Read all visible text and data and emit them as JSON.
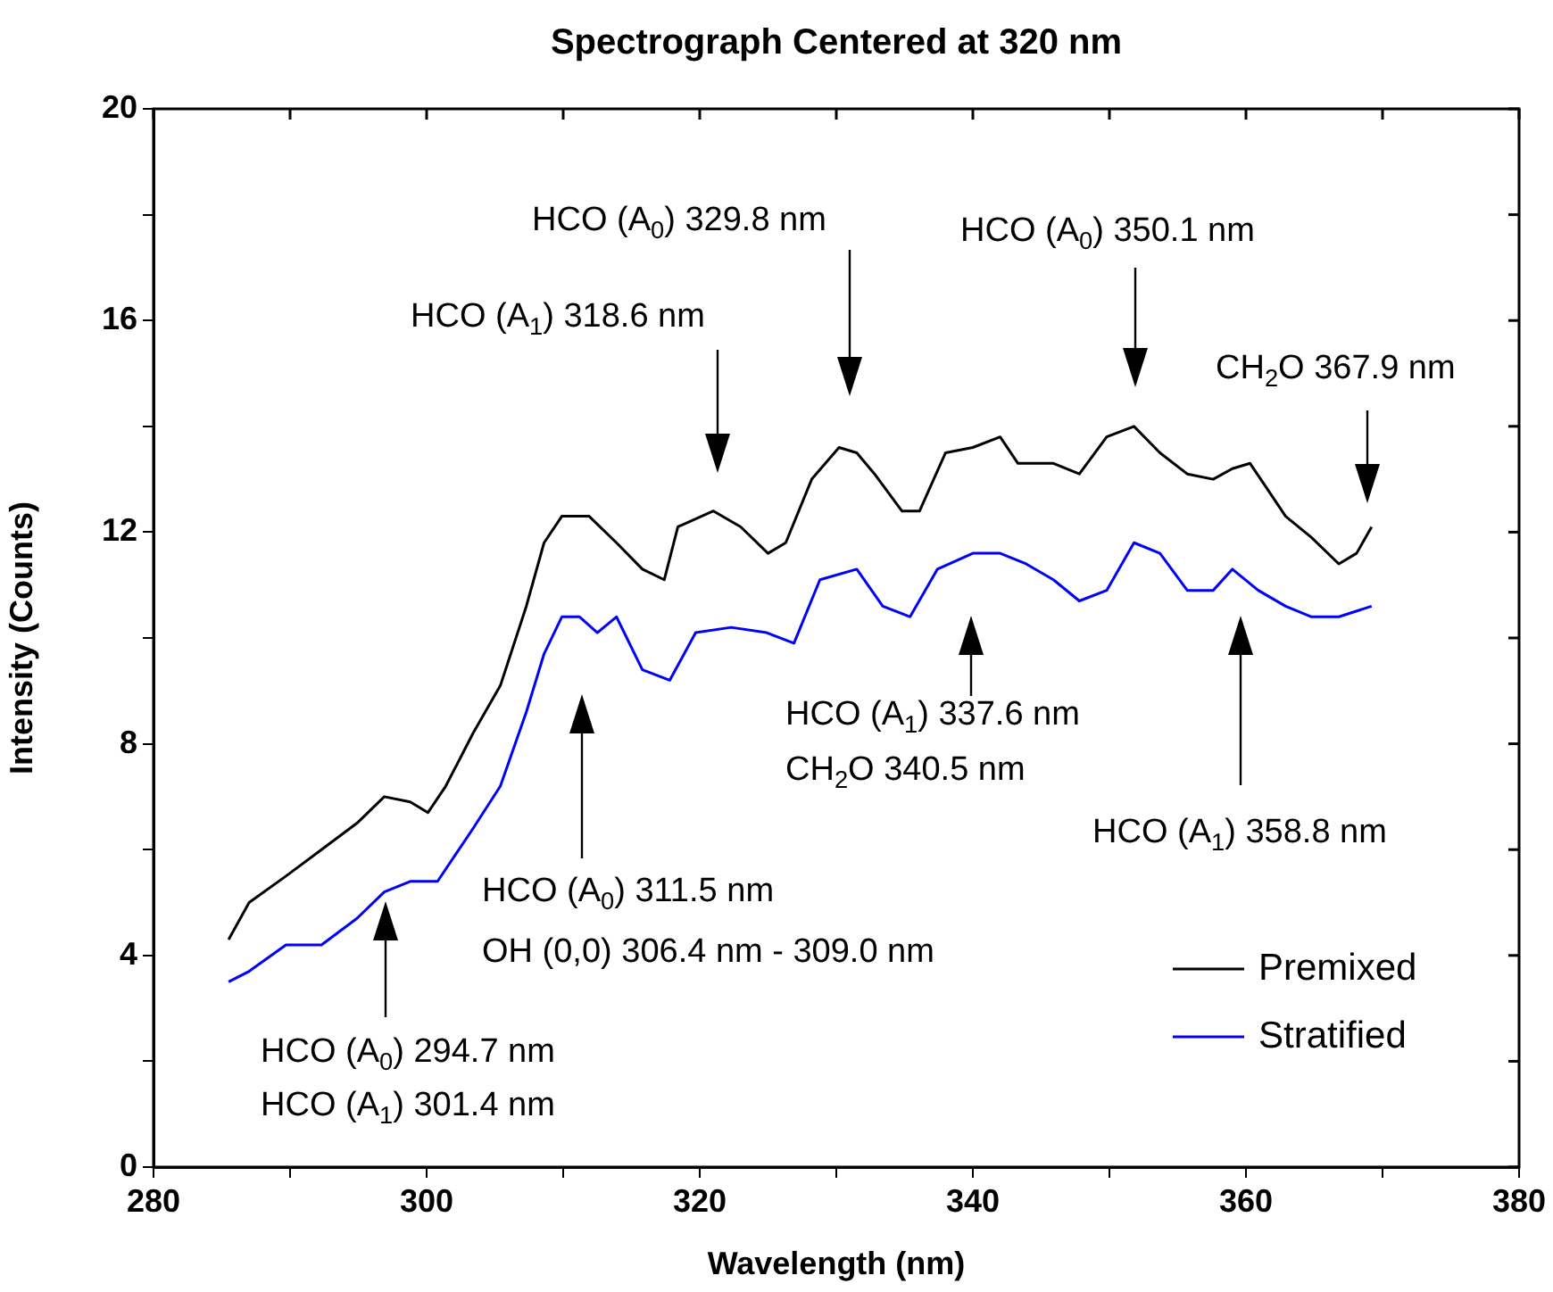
{
  "chart_data": {
    "type": "line",
    "title": "Spectrograph Centered at 320 nm",
    "xlabel": "Wavelength (nm)",
    "ylabel": "Intensity (Counts)",
    "xlim": [
      280,
      380
    ],
    "xticks": [
      280,
      {
        "value": 290,
        "label": null
      },
      300,
      {
        "value": 310,
        "label": null
      },
      320,
      {
        "value": 330,
        "label": null
      },
      340,
      {
        "value": 350,
        "label": null
      },
      360,
      {
        "value": 370,
        "label": null
      },
      380
    ],
    "ylim": [
      0,
      20
    ],
    "yticks": [
      0,
      {
        "value": 2,
        "label": null
      },
      4,
      {
        "value": 6,
        "label": null
      },
      8,
      {
        "value": 10,
        "label": null
      },
      12,
      {
        "value": 14,
        "label": null
      },
      16,
      {
        "value": 18,
        "label": null
      },
      20
    ],
    "legend": "bottom right",
    "grid": false,
    "marker": "none",
    "line_style": "solid",
    "series": [
      {
        "name": "Premixed",
        "color": "#000000",
        "x": [
          285.5,
          287,
          289.7,
          292.3,
          294.9,
          296.9,
          298.8,
          300.1,
          301.4,
          303.4,
          305.4,
          307.3,
          308.6,
          309.9,
          311.9,
          313.9,
          315.8,
          317.4,
          318.4,
          321,
          323,
          325,
          326.3,
          328.2,
          330.2,
          331.5,
          332.8,
          334.8,
          336.1,
          338,
          340,
          342,
          343.3,
          345.9,
          347.8,
          349.8,
          351.8,
          353.7,
          355.7,
          357.6,
          359,
          360.3,
          361.6,
          362.9,
          364.8,
          366.8,
          368.1,
          369.2
        ],
        "values": [
          4.3,
          5,
          5.5,
          6,
          6.5,
          7,
          6.9,
          6.7,
          7.2,
          8.2,
          9.1,
          10.6,
          11.8,
          12.3,
          12.3,
          11.8,
          11.3,
          11.1,
          12.1,
          12.4,
          12.1,
          11.6,
          11.8,
          13,
          13.6,
          13.5,
          13.1,
          12.4,
          12.4,
          13.5,
          13.6,
          13.8,
          13.3,
          13.3,
          13.1,
          13.8,
          14,
          13.5,
          13.1,
          13,
          13.2,
          13.3,
          12.8,
          12.3,
          11.9,
          11.4,
          11.6,
          12.1
        ]
      },
      {
        "name": "Stratified",
        "color": "#0000ff",
        "x": [
          285.5,
          287,
          289.7,
          292.3,
          294.9,
          296.9,
          298.8,
          300.8,
          302.1,
          303.4,
          305.4,
          307.3,
          308.6,
          309.9,
          311.2,
          312.5,
          313.9,
          315.8,
          317.8,
          319.7,
          322.3,
          324.9,
          326.9,
          328.8,
          331.5,
          333.4,
          335.4,
          337.4,
          340,
          342,
          343.9,
          345.9,
          347.8,
          349.8,
          351.8,
          353.7,
          355.7,
          357.6,
          359,
          360.9,
          362.9,
          364.8,
          366.8,
          369.2
        ],
        "values": [
          3.5,
          3.7,
          4.2,
          4.2,
          4.7,
          5.2,
          5.4,
          5.4,
          5.9,
          6.4,
          7.2,
          8.6,
          9.7,
          10.4,
          10.4,
          10.1,
          10.4,
          9.4,
          9.2,
          10.1,
          10.2,
          10.1,
          9.9,
          11.1,
          11.3,
          10.6,
          10.4,
          11.3,
          11.6,
          11.6,
          11.4,
          11.1,
          10.7,
          10.9,
          11.8,
          11.6,
          10.9,
          10.9,
          11.3,
          10.9,
          10.6,
          10.4,
          10.4,
          10.6
        ]
      }
    ],
    "annotations": [
      "HCO (A$_{1}$) 318.6 nm",
      "HCO (A$_{0}$) 329.8 nm",
      "HCO (A$_{0}$) 350.1 nm",
      "CH$_{2}$O 367.9 nm",
      "HCO (A$_{1}$) 337.6 nm",
      "CH$_{2}$O 340.5 nm",
      "HCO (A$_{1}$) 358.8 nm",
      "HCO (A$_{0}$) 311.5 nm",
      "OH (0,0) 306.4 nm - 309.0 nm",
      "HCO (A$_{0}$) 294.7 nm",
      "HCO (A$_{1}$) 301.4 nm"
    ]
  }
}
